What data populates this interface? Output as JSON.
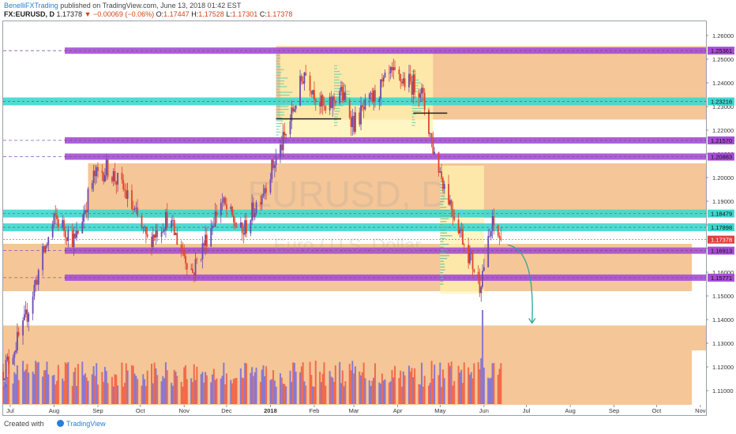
{
  "header": {
    "author": "BenelliFXTrading",
    "published": "published on TradingView.com, June 13, 2018 01:42 EST",
    "symbol": "FX:EURUSD, D",
    "last": "1.17378",
    "change": "−0.00069 (−0.06%)",
    "ohlc": {
      "o_label": "O:",
      "o": "1.17447",
      "h_label": "H:",
      "h": "1.17528",
      "l_label": "L:",
      "l": "1.17301",
      "c_label": "C:",
      "c": "1.17378"
    }
  },
  "footer": {
    "created_with": "Created with",
    "brand": "TradingView"
  },
  "watermark": {
    "symbol": "EURUSD, D",
    "name": "Euro / U.S. Dollar"
  },
  "colors": {
    "purple_zone": "#a64dd6",
    "cyan_zone": "#3fd6cf",
    "orange_zone": "#f3b980",
    "yellow_zone": "#fff3b0",
    "up_candle": "#6a4ab0",
    "down_candle": "#e2452d",
    "volume_up": "#8878d0",
    "volume_down": "#f26a4a",
    "arrow": "#26a69a",
    "price_line": "#e04040"
  },
  "chart_data": {
    "type": "candlestick",
    "x_ticks": [
      "Jul",
      "Aug",
      "Sep",
      "Oct",
      "Nov",
      "Dec",
      "2018",
      "Feb",
      "Mar",
      "Apr",
      "May",
      "Jun",
      "Jul",
      "Aug",
      "Sep",
      "Oct",
      "Nov"
    ],
    "y_ticks": [
      "1.26000",
      "1.25000",
      "1.24000",
      "1.23000",
      "1.22000",
      "1.21000",
      "1.20000",
      "1.19000",
      "1.18000",
      "1.17000",
      "1.16000",
      "1.15000",
      "1.14000",
      "1.13000",
      "1.12000",
      "1.11000"
    ],
    "ylim": [
      1.104,
      1.266
    ],
    "x_range": [
      "2017-06-26",
      "2018-11-05"
    ],
    "last_price": 1.17378,
    "levels": [
      {
        "price": 1.25361,
        "label": "1.25361",
        "color": "#a64dd6"
      },
      {
        "price": 1.23216,
        "label": "1.23216",
        "color": "#3fd6cf"
      },
      {
        "price": 1.2157,
        "label": "1.21570",
        "color": "#a64dd6"
      },
      {
        "price": 1.20883,
        "label": "1.20883",
        "color": "#a64dd6"
      },
      {
        "price": 1.18479,
        "label": "1.18479",
        "color": "#3fd6cf"
      },
      {
        "price": 1.17898,
        "label": "1.17898",
        "color": "#3fd6cf"
      },
      {
        "price": 1.16913,
        "label": "1.16913",
        "color": "#a64dd6"
      },
      {
        "price": 1.15771,
        "label": "1.15771",
        "color": "#a64dd6"
      }
    ],
    "zones": [
      {
        "type": "orange",
        "start": "2018-01-05",
        "end": "2018-11-05",
        "low": 1.2372,
        "high": 1.2555
      },
      {
        "type": "orange",
        "start": "2018-01-05",
        "end": "2018-11-05",
        "low": 1.2245,
        "high": 1.2372
      },
      {
        "type": "orange",
        "start": "2017-08-25",
        "end": "2018-11-05",
        "low": 1.183,
        "high": 1.206
      },
      {
        "type": "orange",
        "start": "2017-06-26",
        "end": "2018-10-26",
        "low": 1.152,
        "high": 1.172
      },
      {
        "type": "orange",
        "start": "2017-06-26",
        "end": "2018-11-05",
        "low": 1.127,
        "high": 1.1375
      },
      {
        "type": "orange",
        "start": "2017-06-26",
        "end": "2018-10-26",
        "low": 1.104,
        "high": 1.127
      },
      {
        "type": "yellow",
        "start": "2018-01-08",
        "end": "2018-04-26",
        "low": 1.2155,
        "high": 1.2545
      },
      {
        "type": "yellow",
        "start": "2018-05-01",
        "end": "2018-06-01",
        "low": 1.151,
        "high": 1.205
      }
    ],
    "arrow": {
      "from": [
        "2018-06-18",
        1.1715
      ],
      "to": [
        "2018-07-05",
        1.1385
      ]
    },
    "key_points": [
      {
        "date": "2017-06-26",
        "price": 1.118
      },
      {
        "date": "2017-07-10",
        "price": 1.136
      },
      {
        "date": "2017-07-24",
        "price": 1.167
      },
      {
        "date": "2017-08-02",
        "price": 1.183
      },
      {
        "date": "2017-08-16",
        "price": 1.173
      },
      {
        "date": "2017-08-29",
        "price": 1.2
      },
      {
        "date": "2017-09-08",
        "price": 1.204
      },
      {
        "date": "2017-09-20",
        "price": 1.194
      },
      {
        "date": "2017-10-06",
        "price": 1.173
      },
      {
        "date": "2017-10-20",
        "price": 1.183
      },
      {
        "date": "2017-11-07",
        "price": 1.16
      },
      {
        "date": "2017-11-27",
        "price": 1.19
      },
      {
        "date": "2017-12-12",
        "price": 1.176
      },
      {
        "date": "2017-12-29",
        "price": 1.198
      },
      {
        "date": "2018-01-12",
        "price": 1.218
      },
      {
        "date": "2018-01-25",
        "price": 1.245
      },
      {
        "date": "2018-02-09",
        "price": 1.227
      },
      {
        "date": "2018-02-19",
        "price": 1.237
      },
      {
        "date": "2018-03-01",
        "price": 1.223
      },
      {
        "date": "2018-03-27",
        "price": 1.243
      },
      {
        "date": "2018-04-17",
        "price": 1.238
      },
      {
        "date": "2018-04-27",
        "price": 1.21
      },
      {
        "date": "2018-05-09",
        "price": 1.188
      },
      {
        "date": "2018-05-29",
        "price": 1.155
      },
      {
        "date": "2018-06-07",
        "price": 1.18
      },
      {
        "date": "2018-06-13",
        "price": 1.17378
      }
    ]
  }
}
